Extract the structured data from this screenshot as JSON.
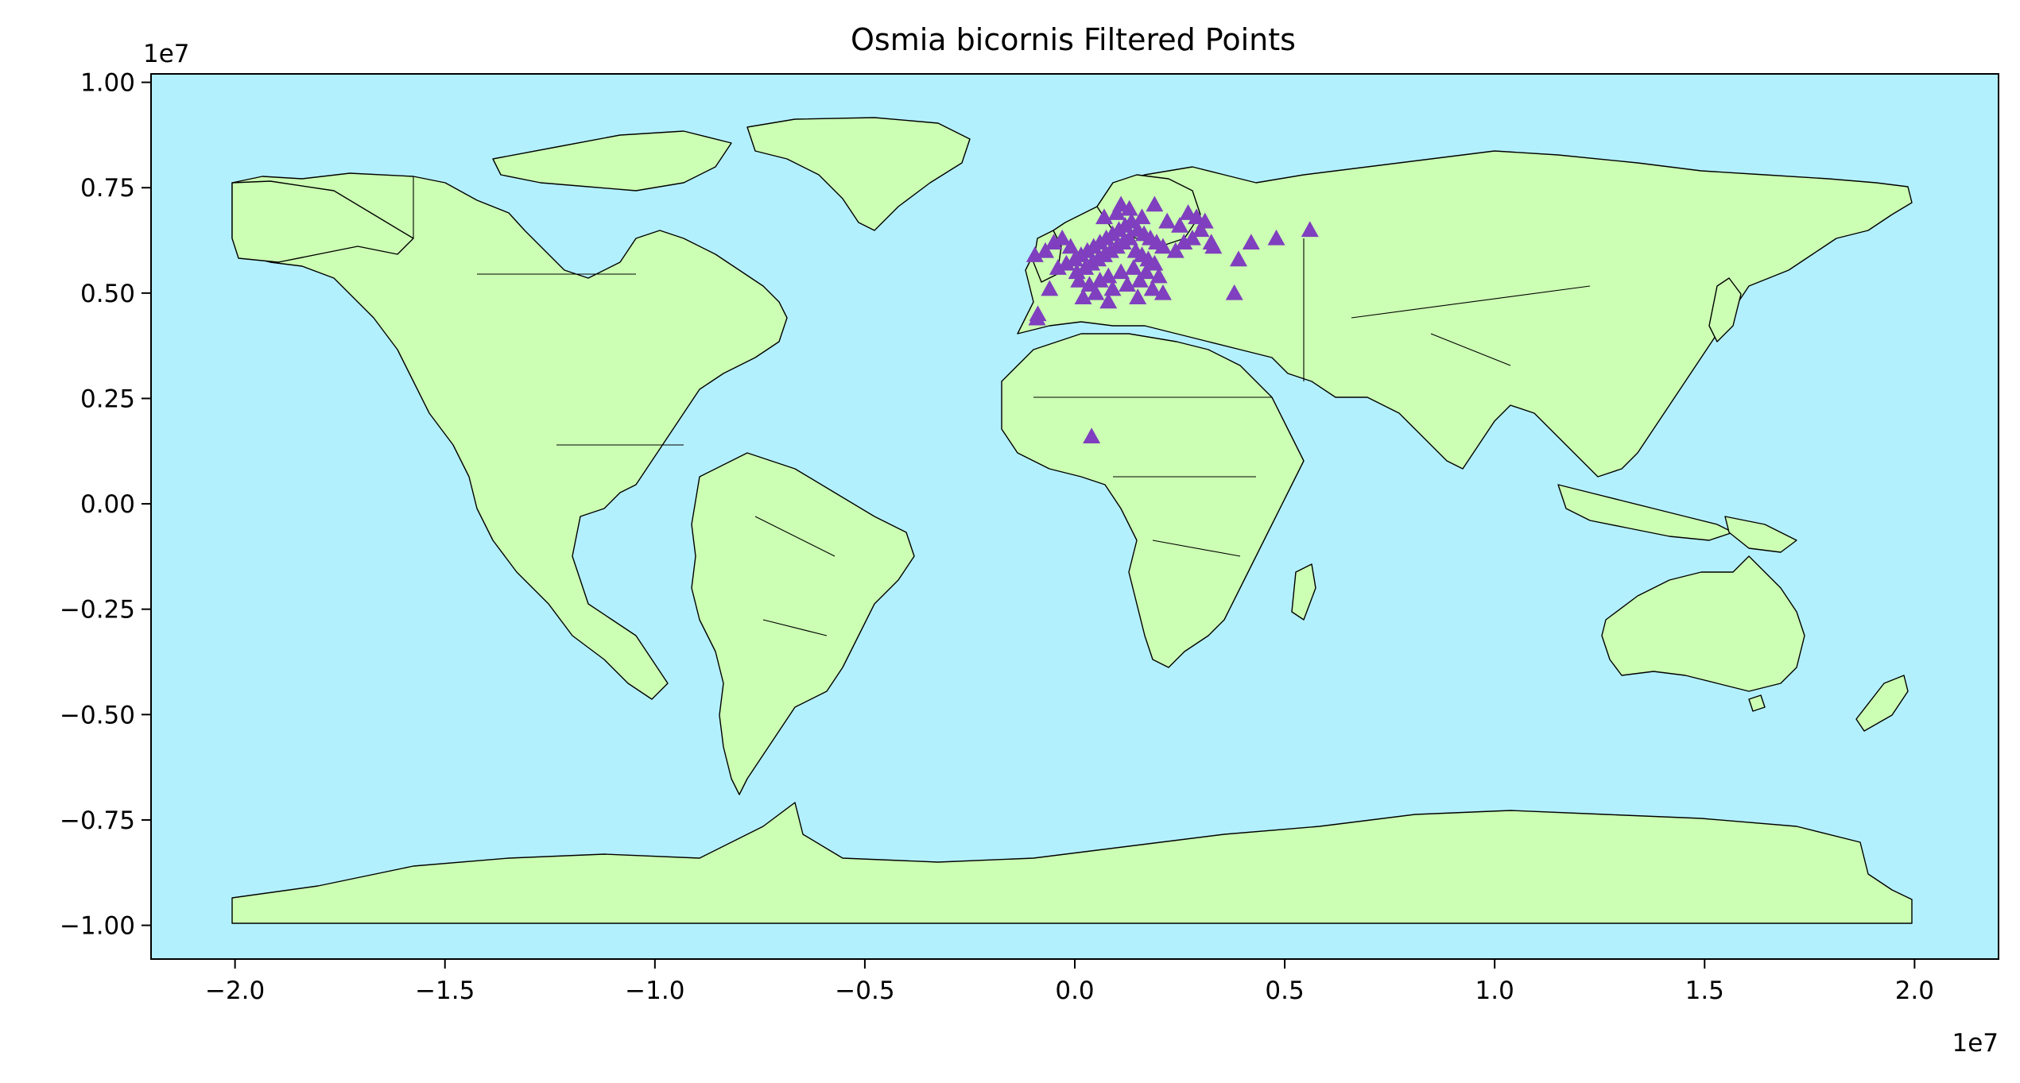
{
  "chart_data": {
    "type": "scatter",
    "title": "Osmia bicornis Filtered Points",
    "xlabel": "",
    "ylabel": "",
    "x_scale_label": "1e7",
    "y_scale_label": "1e7",
    "xlim": [
      -22000000.0,
      22000000.0
    ],
    "ylim": [
      -10800000.0,
      10200000.0
    ],
    "x_ticks": [
      -2.0,
      -1.5,
      -1.0,
      -0.5,
      0.0,
      0.5,
      1.0,
      1.5,
      2.0
    ],
    "x_tick_labels": [
      "−2.0",
      "−1.5",
      "−1.0",
      "−0.5",
      "0.0",
      "0.5",
      "1.0",
      "1.5",
      "2.0"
    ],
    "y_ticks": [
      1.0,
      0.75,
      0.5,
      0.25,
      0.0,
      -0.25,
      -0.5,
      -0.75,
      -1.0
    ],
    "y_tick_labels": [
      "1.00",
      "0.75",
      "0.50",
      "0.25",
      "0.00",
      "−0.25",
      "−0.50",
      "−0.75",
      "−1.00"
    ],
    "grid": false,
    "legend": "none",
    "colors": {
      "ocean": "#b3f0fd",
      "land": "#ccffb3",
      "borders": "#000000",
      "points": "#7f3fbf"
    },
    "marker": "triangle",
    "series": [
      {
        "x": [
          -900000,
          -880000,
          -950000,
          -700000,
          -500000,
          -300000,
          -100000,
          0,
          150000,
          300000,
          450000,
          600000,
          750000,
          900000,
          1050000,
          1200000,
          1350000,
          1500000,
          1650000,
          1800000,
          1950000,
          2100000,
          -200000,
          50000,
          250000,
          400000,
          550000,
          700000,
          850000,
          1000000,
          1150000,
          1300000,
          1450000,
          1600000,
          1750000,
          1900000,
          100000,
          350000,
          600000,
          800000,
          1100000,
          1400000,
          1700000,
          2000000,
          200000,
          500000,
          900000,
          1250000,
          1550000,
          1850000,
          700000,
          1000000,
          1300000,
          1600000,
          2200000,
          2500000,
          2700000,
          2900000,
          3100000,
          3300000,
          2600000,
          2800000,
          3000000,
          2400000,
          3250000,
          3900000,
          4200000,
          4800000,
          5600000,
          3800000,
          400000,
          1100000,
          800000,
          1500000,
          -600000,
          -400000,
          2100000,
          1900000
        ],
        "y": [
          4400000,
          4500000,
          5900000,
          6000000,
          6200000,
          6300000,
          6100000,
          5800000,
          5900000,
          6000000,
          6100000,
          6200000,
          6300000,
          6400000,
          6500000,
          6600000,
          6700000,
          6500000,
          6400000,
          6300000,
          6200000,
          6100000,
          5700000,
          5500000,
          5600000,
          5700000,
          5800000,
          5900000,
          6000000,
          6100000,
          6200000,
          6300000,
          6000000,
          5900000,
          5800000,
          5700000,
          5300000,
          5200000,
          5300000,
          5400000,
          5500000,
          5600000,
          5500000,
          5400000,
          4900000,
          5000000,
          5100000,
          5200000,
          5300000,
          5100000,
          6800000,
          6900000,
          7000000,
          6800000,
          6700000,
          6600000,
          6900000,
          6800000,
          6700000,
          6100000,
          6200000,
          6300000,
          6500000,
          6000000,
          6200000,
          5800000,
          6200000,
          6300000,
          6500000,
          5000000,
          1600000,
          7100000,
          4800000,
          4900000,
          5100000,
          5600000,
          5000000,
          7100000
        ]
      }
    ]
  }
}
